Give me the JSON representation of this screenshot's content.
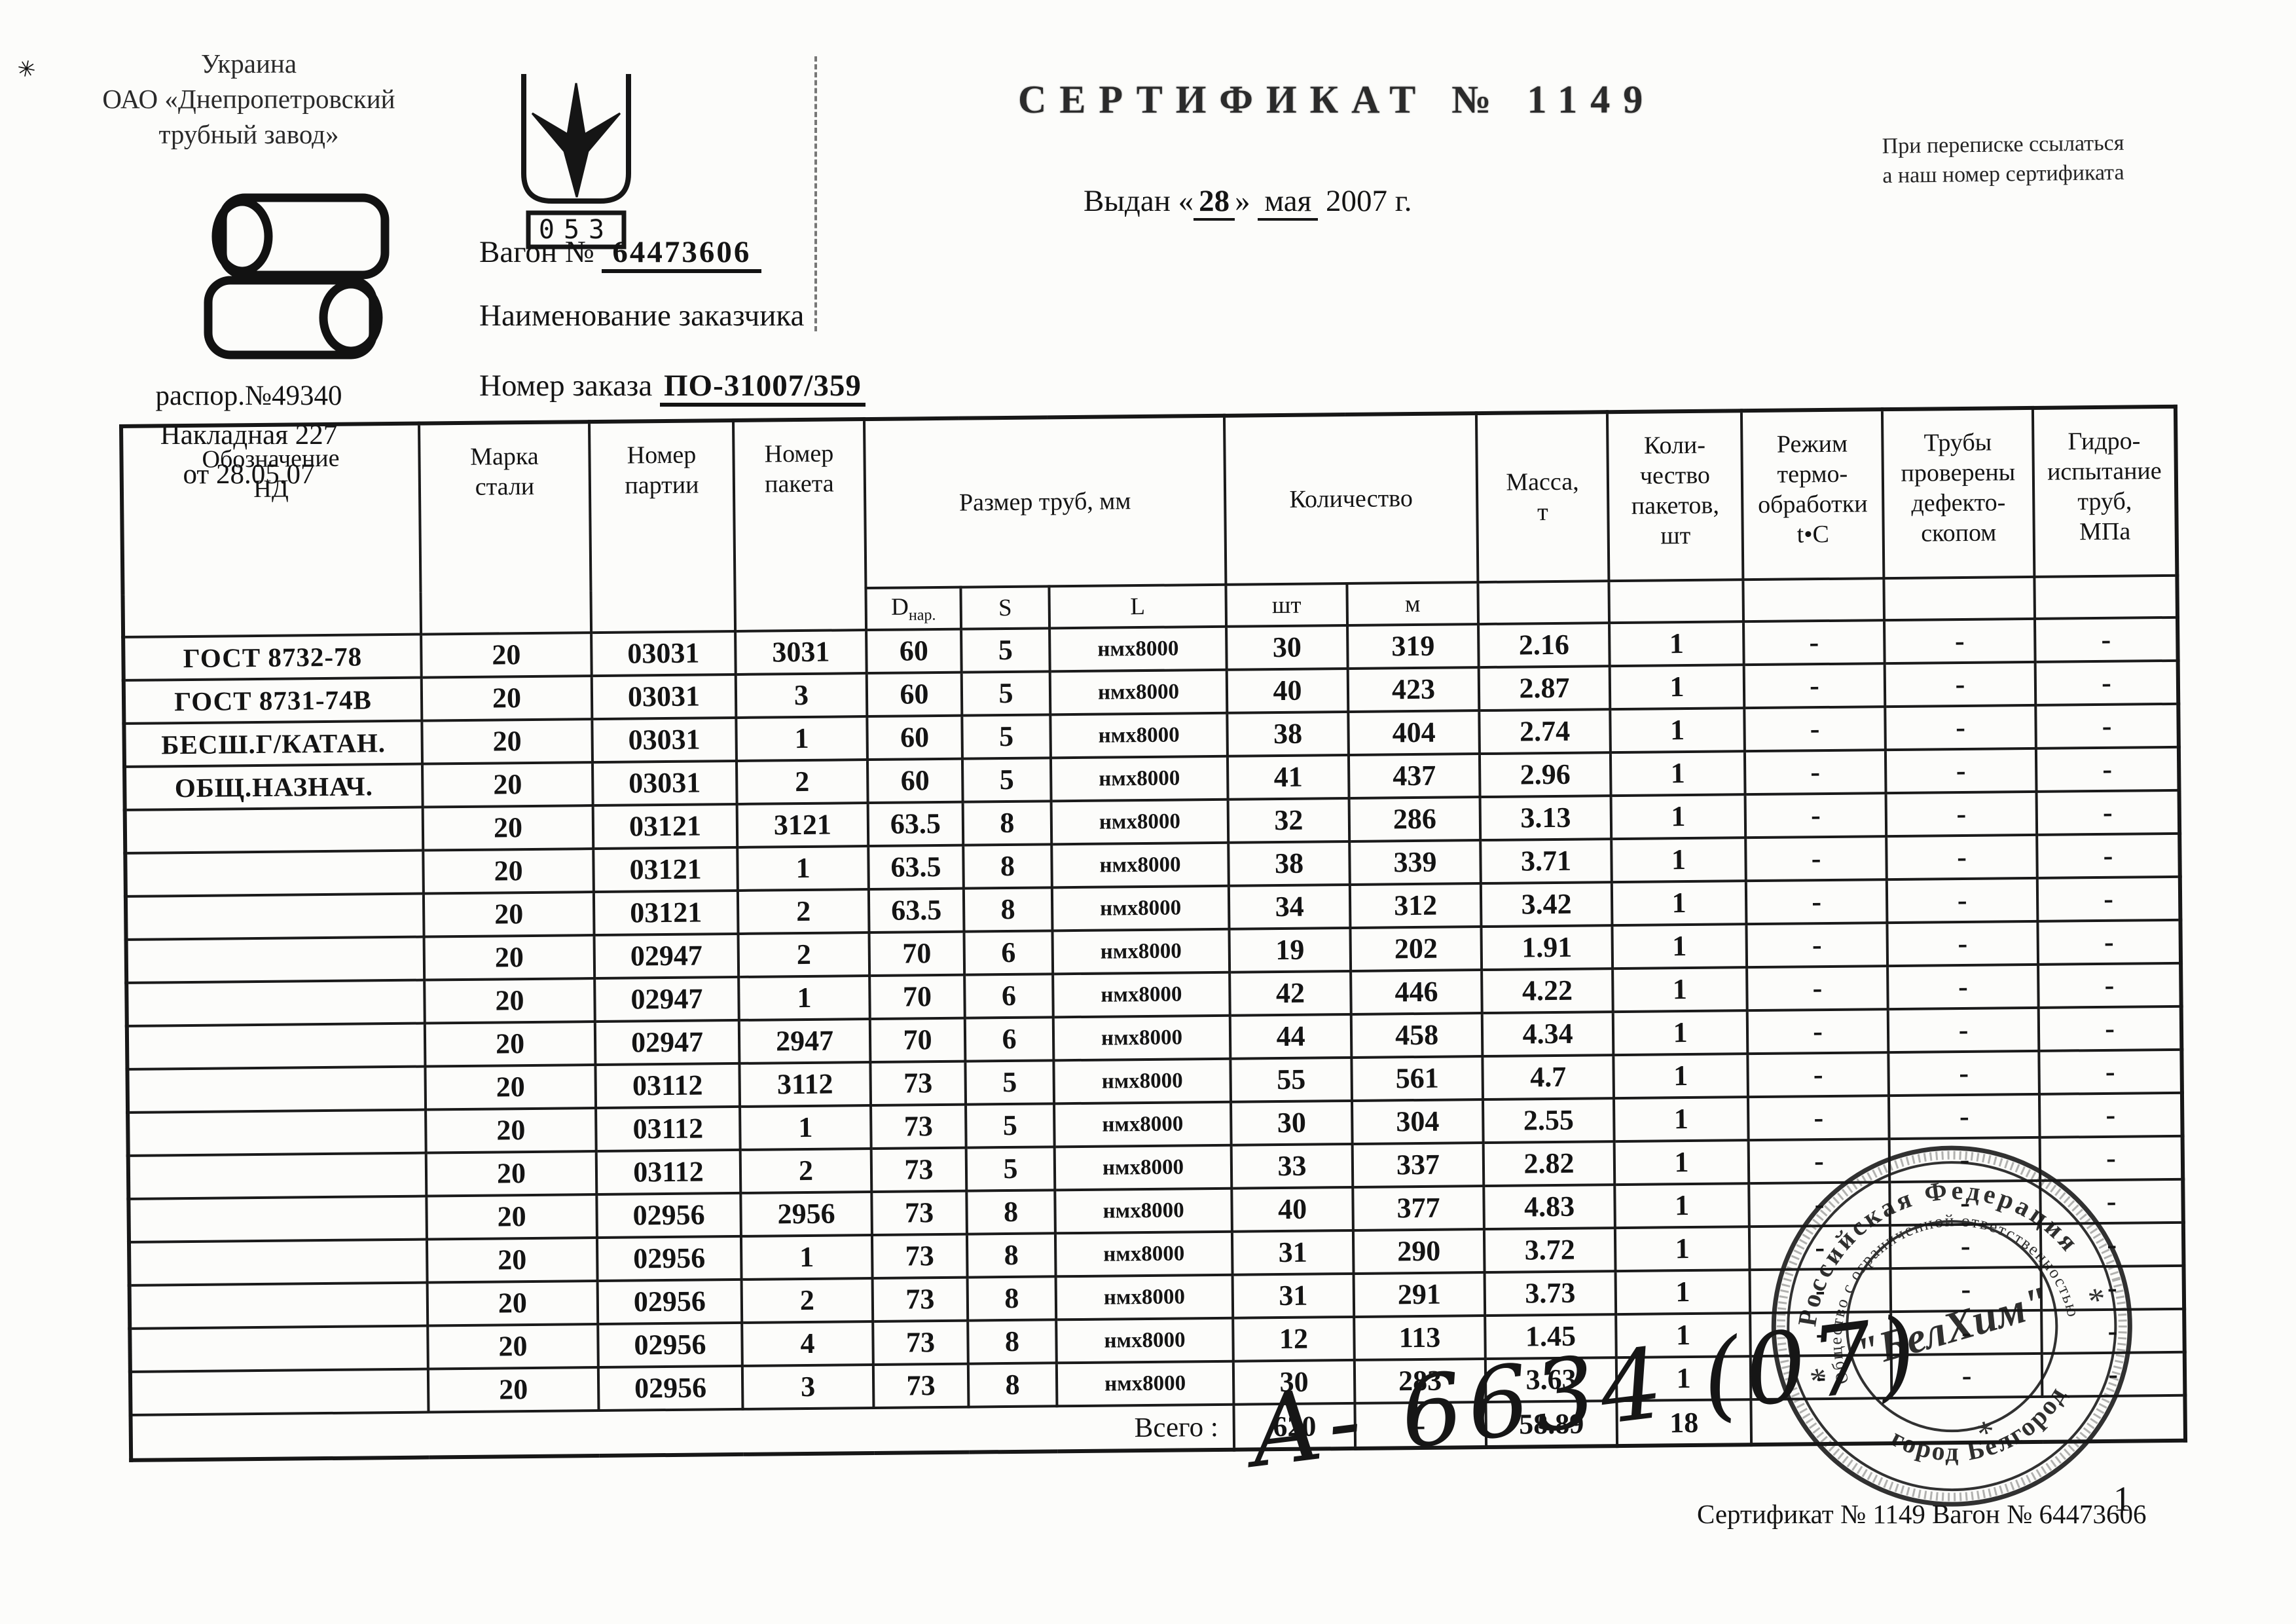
{
  "header": {
    "country": "Украина",
    "company_line1": "ОАО «Днепропетровский",
    "company_line2": "трубный завод»",
    "mark_code": "053",
    "dispatch_no": "распор.№49340",
    "invoice": "Накладная  227",
    "invoice_date": "от 28.05.07",
    "title": "СЕРТИФИКАТ  № 1149",
    "issued_prefix": "Выдан «",
    "issued_day": "28",
    "issued_close": "»",
    "issued_month": "мая",
    "issued_year": "2007",
    "issued_suffix": "г.",
    "note_line1": "При переписке ссылаться",
    "note_line2": "а наш номер сертификата",
    "wagon_label": "Вагон №",
    "wagon_no": "64473606",
    "customer_label": "Наименование заказчика",
    "order_label": "Номер заказа",
    "order_value": "ПО-31007/359",
    "speck": "✳"
  },
  "table": {
    "headers": {
      "col_nd": "Обозначение\nНД",
      "col_steel": "Марка\nстали",
      "col_party": "Номер\nпартии",
      "col_packet": "Номер\nпакета",
      "col_size": "Размер труб, мм",
      "col_qty": "Количество",
      "col_mass": "Масса,\nт",
      "col_packets": "Коли-\nчество\nпакетов,\nшт",
      "col_thermo": "Режим\nтермо-\nобработки\nt•С",
      "col_defecto": "Трубы\nпроверены\nдефекто-\nскопом",
      "col_hydro": "Гидро-\nиспытание\nтруб,\nМПа",
      "sub_d_main": "D",
      "sub_d_sub": "нар.",
      "sub_s": "S",
      "sub_l": "L",
      "sub_pcs": "шт",
      "sub_m": "м"
    },
    "rows": [
      [
        "ГОСТ 8732-78",
        "20",
        "03031",
        "3031",
        "60",
        "5",
        "нмх8000",
        "30",
        "319",
        "2.16",
        "1",
        "-",
        "-",
        "-"
      ],
      [
        "ГОСТ 8731-74В",
        "20",
        "03031",
        "3",
        "60",
        "5",
        "нмх8000",
        "40",
        "423",
        "2.87",
        "1",
        "-",
        "-",
        "-"
      ],
      [
        "БЕСШ.Г/КАТАН.",
        "20",
        "03031",
        "1",
        "60",
        "5",
        "нмх8000",
        "38",
        "404",
        "2.74",
        "1",
        "-",
        "-",
        "-"
      ],
      [
        "ОБЩ.НАЗНАЧ.",
        "20",
        "03031",
        "2",
        "60",
        "5",
        "нмх8000",
        "41",
        "437",
        "2.96",
        "1",
        "-",
        "-",
        "-"
      ],
      [
        "",
        "20",
        "03121",
        "3121",
        "63.5",
        "8",
        "нмх8000",
        "32",
        "286",
        "3.13",
        "1",
        "-",
        "-",
        "-"
      ],
      [
        "",
        "20",
        "03121",
        "1",
        "63.5",
        "8",
        "нмх8000",
        "38",
        "339",
        "3.71",
        "1",
        "-",
        "-",
        "-"
      ],
      [
        "",
        "20",
        "03121",
        "2",
        "63.5",
        "8",
        "нмх8000",
        "34",
        "312",
        "3.42",
        "1",
        "-",
        "-",
        "-"
      ],
      [
        "",
        "20",
        "02947",
        "2",
        "70",
        "6",
        "нмх8000",
        "19",
        "202",
        "1.91",
        "1",
        "-",
        "-",
        "-"
      ],
      [
        "",
        "20",
        "02947",
        "1",
        "70",
        "6",
        "нмх8000",
        "42",
        "446",
        "4.22",
        "1",
        "-",
        "-",
        "-"
      ],
      [
        "",
        "20",
        "02947",
        "2947",
        "70",
        "6",
        "нмх8000",
        "44",
        "458",
        "4.34",
        "1",
        "-",
        "-",
        "-"
      ],
      [
        "",
        "20",
        "03112",
        "3112",
        "73",
        "5",
        "нмх8000",
        "55",
        "561",
        "4.7",
        "1",
        "-",
        "-",
        "-"
      ],
      [
        "",
        "20",
        "03112",
        "1",
        "73",
        "5",
        "нмх8000",
        "30",
        "304",
        "2.55",
        "1",
        "-",
        "-",
        "-"
      ],
      [
        "",
        "20",
        "03112",
        "2",
        "73",
        "5",
        "нмх8000",
        "33",
        "337",
        "2.82",
        "1",
        "-",
        "-",
        "-"
      ],
      [
        "",
        "20",
        "02956",
        "2956",
        "73",
        "8",
        "нмх8000",
        "40",
        "377",
        "4.83",
        "1",
        "-",
        "-",
        "-"
      ],
      [
        "",
        "20",
        "02956",
        "1",
        "73",
        "8",
        "нмх8000",
        "31",
        "290",
        "3.72",
        "1",
        "-",
        "-",
        "-"
      ],
      [
        "",
        "20",
        "02956",
        "2",
        "73",
        "8",
        "нмх8000",
        "31",
        "291",
        "3.73",
        "1",
        "-",
        "-",
        "-"
      ],
      [
        "",
        "20",
        "02956",
        "4",
        "73",
        "8",
        "нмх8000",
        "12",
        "113",
        "1.45",
        "1",
        "-",
        "-",
        "-"
      ],
      [
        "",
        "20",
        "02956",
        "3",
        "73",
        "8",
        "нмх8000",
        "30",
        "283",
        "3.63",
        "1",
        "-",
        "-",
        "-"
      ]
    ],
    "totals": {
      "label": "Всего :",
      "pcs": "620",
      "m": "-",
      "mass": "58.89",
      "packets": "18"
    }
  },
  "stamp": {
    "ring_outer": "Российская  Федерация",
    "ring_inner": "Общество с ограниченной ответственностью",
    "ring_bottom": "город Белгород",
    "center": "\"БелХим\"",
    "star_left": "*",
    "star_right": "*",
    "star_bottom": "*"
  },
  "handwriting": "А-  6634 (07)",
  "footer": {
    "certificate_line": "Сертификат № 1149 Вагон № 64473606",
    "page": "1"
  }
}
